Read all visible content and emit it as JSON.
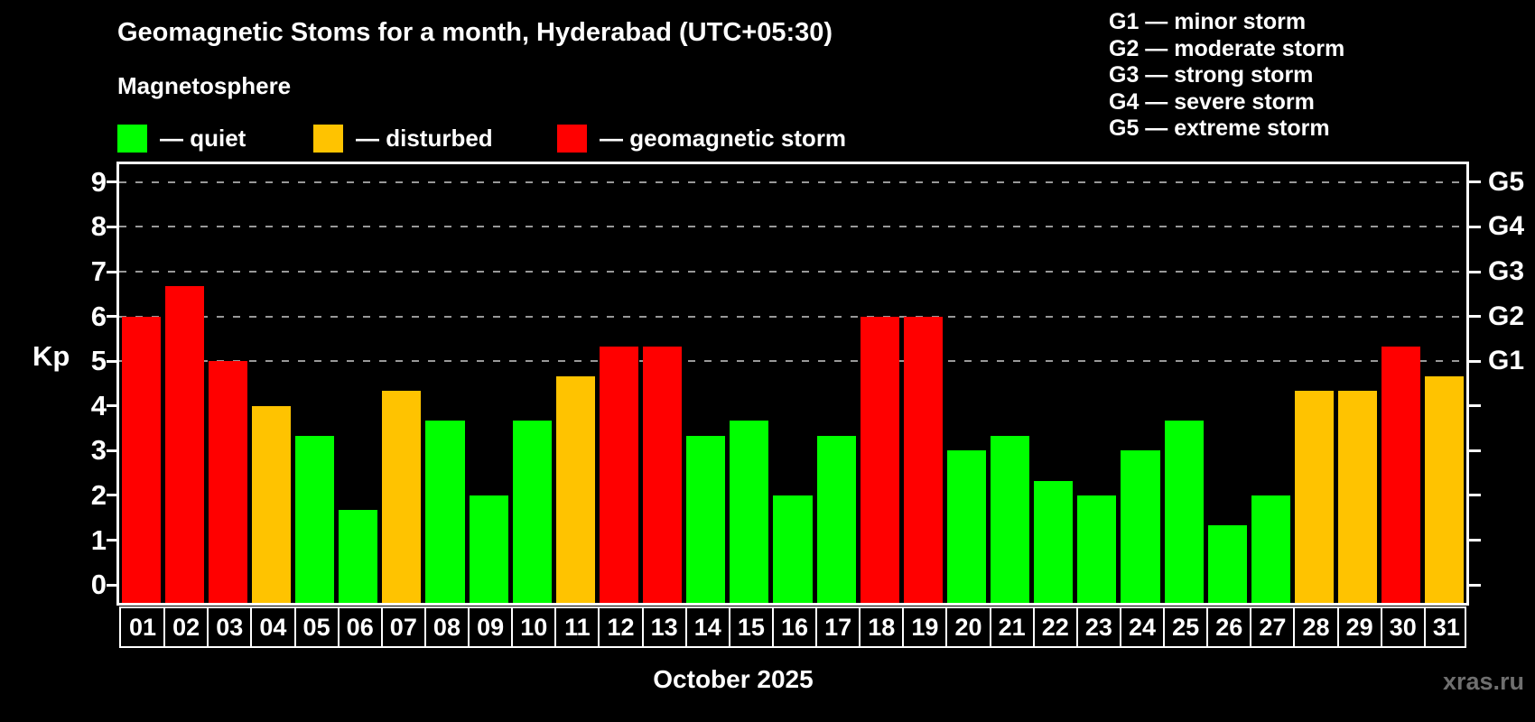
{
  "title": "Geomagnetic Stoms for a month, Hyderabad (UTC+05:30)",
  "subtitle": "Magnetosphere",
  "legend": [
    {
      "key": "quiet",
      "label": "— quiet"
    },
    {
      "key": "disturbed",
      "label": "— disturbed"
    },
    {
      "key": "storm",
      "label": "— geomagnetic storm"
    }
  ],
  "g_legend": [
    "G1 — minor storm",
    "G2 — moderate storm",
    "G3 — strong storm",
    "G4 — severe storm",
    "G5 — extreme storm"
  ],
  "axis": {
    "kp_label": "Kp"
  },
  "x_label": "October 2025",
  "watermark": "xras.ru",
  "colors": {
    "quiet": "#00ff00",
    "disturbed": "#ffc300",
    "storm": "#ff0000",
    "grid": "#999999",
    "axis": "#ffffff",
    "watermark_text": "#6f6f6f"
  },
  "chart_data": {
    "type": "bar",
    "title": "Geomagnetic Stoms for a month, Hyderabad (UTC+05:30)",
    "xlabel": "October 2025",
    "ylabel": "Kp",
    "ylim": [
      -0.4,
      9.4
    ],
    "grid": "dashed horizontal at Kp 5..9 only",
    "legend_position": "top-left (series) and top-right (G scale)",
    "categories": [
      "01",
      "02",
      "03",
      "04",
      "05",
      "06",
      "07",
      "08",
      "09",
      "10",
      "11",
      "12",
      "13",
      "14",
      "15",
      "16",
      "17",
      "18",
      "19",
      "20",
      "21",
      "22",
      "23",
      "24",
      "25",
      "26",
      "27",
      "28",
      "29",
      "30",
      "31"
    ],
    "values": [
      6,
      6.67,
      5,
      4,
      3.33,
      1.67,
      4.33,
      3.67,
      2,
      3.67,
      4.67,
      5.33,
      5.33,
      3.33,
      3.67,
      2,
      3.33,
      6,
      6,
      3,
      3.33,
      2.33,
      2,
      3,
      3.67,
      1.33,
      2,
      4.33,
      4.33,
      5.33,
      4.67
    ],
    "statuses": [
      "storm",
      "storm",
      "storm",
      "disturbed",
      "quiet",
      "quiet",
      "disturbed",
      "quiet",
      "quiet",
      "quiet",
      "disturbed",
      "storm",
      "storm",
      "quiet",
      "quiet",
      "quiet",
      "quiet",
      "storm",
      "storm",
      "quiet",
      "quiet",
      "quiet",
      "quiet",
      "quiet",
      "quiet",
      "quiet",
      "quiet",
      "disturbed",
      "disturbed",
      "storm",
      "disturbed"
    ],
    "y_ticks": [
      0,
      1,
      2,
      3,
      4,
      5,
      6,
      7,
      8,
      9
    ],
    "gridlines": [
      5,
      6,
      7,
      8,
      9
    ],
    "right_axis": [
      {
        "kp": 5,
        "label": "G1"
      },
      {
        "kp": 6,
        "label": "G2"
      },
      {
        "kp": 7,
        "label": "G3"
      },
      {
        "kp": 8,
        "label": "G4"
      },
      {
        "kp": 9,
        "label": "G5"
      }
    ]
  }
}
